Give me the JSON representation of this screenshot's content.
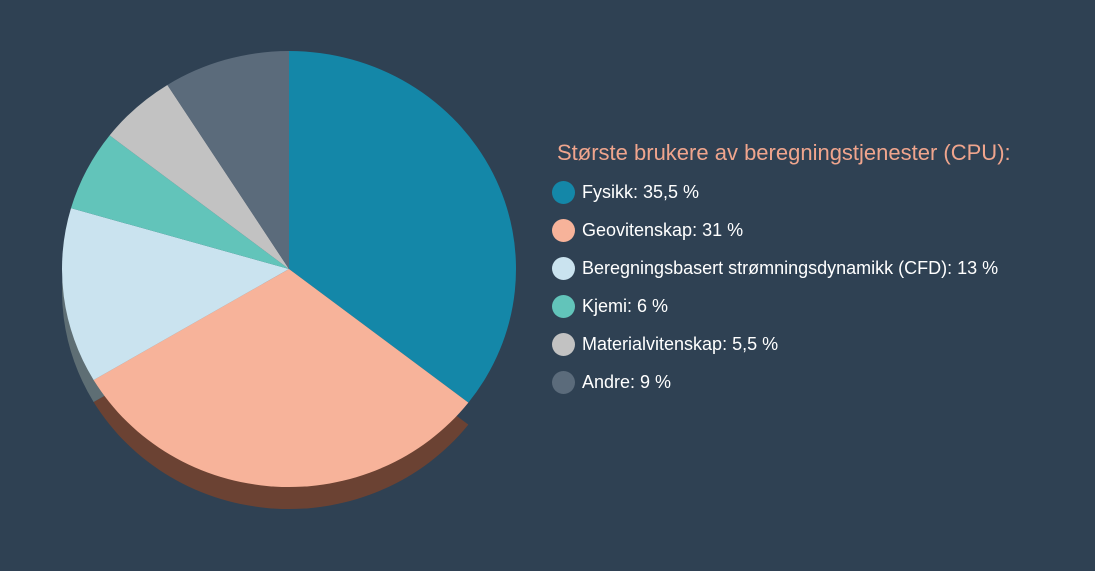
{
  "chart_data": {
    "type": "pie",
    "title": "Største brukere av beregningstjenester (CPU):",
    "slices": [
      {
        "label": "Fysikk: 35,5 %",
        "name": "Fysikk",
        "value": 35.5,
        "color": "#1487a8"
      },
      {
        "label": "Geovitenskap: 31 %",
        "name": "Geovitenskap",
        "value": 31,
        "color": "#f7b39a",
        "shadow": "#6b4233"
      },
      {
        "label": "Beregningsbasert strømningsdynamikk (CFD): 13 %",
        "name": "Beregningsbasert strømningsdynamikk (CFD)",
        "value": 13,
        "color": "#cae3ef",
        "shadow": "#5e6e74"
      },
      {
        "label": "Kjemi: 6 %",
        "name": "Kjemi",
        "value": 6,
        "color": "#62c4ba"
      },
      {
        "label": "Materialvitenskap: 5,5 %",
        "name": "Materialvitenskap",
        "value": 5.5,
        "color": "#c2c2c2"
      },
      {
        "label": "Andre: 9 %",
        "name": "Andre",
        "value": 9,
        "color": "#5b6b7b"
      }
    ],
    "start_angle_deg": 0,
    "direction": "clockwise",
    "legend_position": "right"
  },
  "colors": {
    "background": "#2f4153",
    "title": "#f0a58d",
    "label": "#ffffff"
  }
}
